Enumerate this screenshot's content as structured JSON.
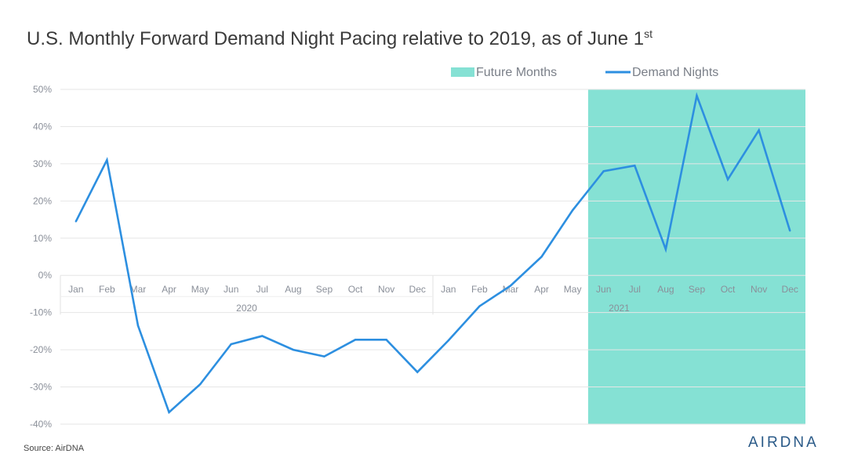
{
  "chart_data": {
    "type": "line",
    "title_main": "U.S. Monthly Forward Demand Night Pacing relative to 2019, as of June 1",
    "title_sup": "st",
    "legend": {
      "position": "top-right",
      "items": [
        {
          "label": "Future Months",
          "color": "#85e1d4",
          "kind": "area"
        },
        {
          "label": "Demand Nights",
          "color": "#2d8fe0",
          "kind": "line"
        }
      ]
    },
    "ylim": [
      -40,
      50
    ],
    "yticks": [
      "50%",
      "40%",
      "30%",
      "20%",
      "10%",
      "0%",
      "-10%",
      "-20%",
      "-30%",
      "-40%"
    ],
    "x": [
      "Jan",
      "Feb",
      "Mar",
      "Apr",
      "May",
      "Jun",
      "Jul",
      "Aug",
      "Sep",
      "Oct",
      "Nov",
      "Dec",
      "Jan",
      "Feb",
      "Mar",
      "Apr",
      "May",
      "Jun",
      "Jul",
      "Aug",
      "Sep",
      "Oct",
      "Nov",
      "Dec"
    ],
    "years": [
      "2020",
      "2021"
    ],
    "shaded_from_index": 16.5,
    "series": [
      {
        "name": "Demand Nights",
        "color": "#2d8fe0",
        "values": [
          14.5,
          31,
          -13.5,
          -36.8,
          -29.3,
          -18.5,
          -16.3,
          -20,
          -21.8,
          -17.3,
          -17.3,
          -26,
          -17.5,
          -8.3,
          -2.8,
          5,
          17.5,
          28,
          29.5,
          7,
          48.3,
          25.8,
          39,
          12
        ]
      }
    ]
  },
  "source": "Source: AirDNA",
  "logo": "AIRDNA"
}
